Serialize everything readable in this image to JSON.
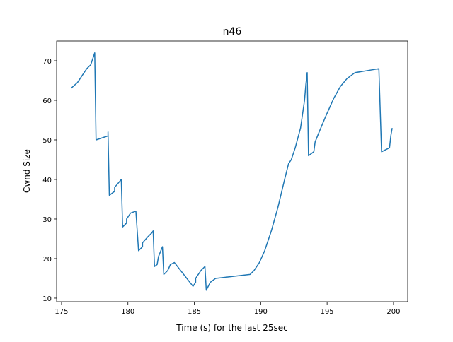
{
  "chart_data": {
    "type": "line",
    "title": "n46",
    "xlabel": "Time (s) for the last 25sec",
    "ylabel": "Cwnd Size",
    "xlim": [
      174.63,
      201.07
    ],
    "ylim": [
      9.1,
      75
    ],
    "xticks": [
      175,
      180,
      185,
      190,
      195,
      200
    ],
    "yticks": [
      10,
      20,
      30,
      40,
      50,
      60,
      70
    ],
    "grid": false,
    "series": [
      {
        "name": "n46",
        "color": "#1f77b4",
        "x": [
          175.7,
          176.2,
          176.6,
          176.9,
          177.2,
          177.4,
          177.5,
          177.6,
          178.5,
          178.5,
          178.6,
          179.0,
          179.0,
          179.5,
          179.6,
          179.9,
          179.9,
          180.2,
          180.6,
          180.8,
          181.1,
          181.1,
          181.5,
          181.8,
          181.9,
          182.0,
          182.2,
          182.3,
          182.6,
          182.7,
          183.0,
          183.2,
          183.5,
          184.9,
          185.1,
          185.1,
          185.5,
          185.8,
          185.9,
          186.2,
          186.6,
          189.2,
          189.5,
          189.9,
          190.3,
          190.8,
          191.3,
          191.8,
          192.1,
          192.3,
          192.6,
          193.0,
          193.3,
          193.4,
          193.5,
          193.6,
          194.0,
          194.1,
          194.4,
          194.9,
          195.5,
          196.0,
          196.5,
          197.1,
          198.9,
          199.1,
          199.7,
          199.8,
          199.9
        ],
        "values": [
          63,
          64.5,
          66.5,
          68,
          69,
          71,
          72,
          50,
          51,
          52,
          36,
          37,
          38,
          40,
          28,
          29,
          30,
          31.5,
          32,
          22,
          23,
          24,
          25.5,
          26.5,
          27,
          18,
          18.5,
          20.5,
          23,
          16,
          17,
          18.5,
          19,
          13,
          14,
          15,
          17,
          18,
          12,
          14,
          15,
          16,
          17,
          19,
          22,
          27,
          33,
          40,
          44,
          45,
          48,
          53,
          60,
          64,
          67,
          46,
          47,
          49.5,
          52,
          56,
          60.5,
          63.5,
          65.5,
          67,
          68,
          47,
          48,
          51,
          53
        ]
      }
    ]
  }
}
